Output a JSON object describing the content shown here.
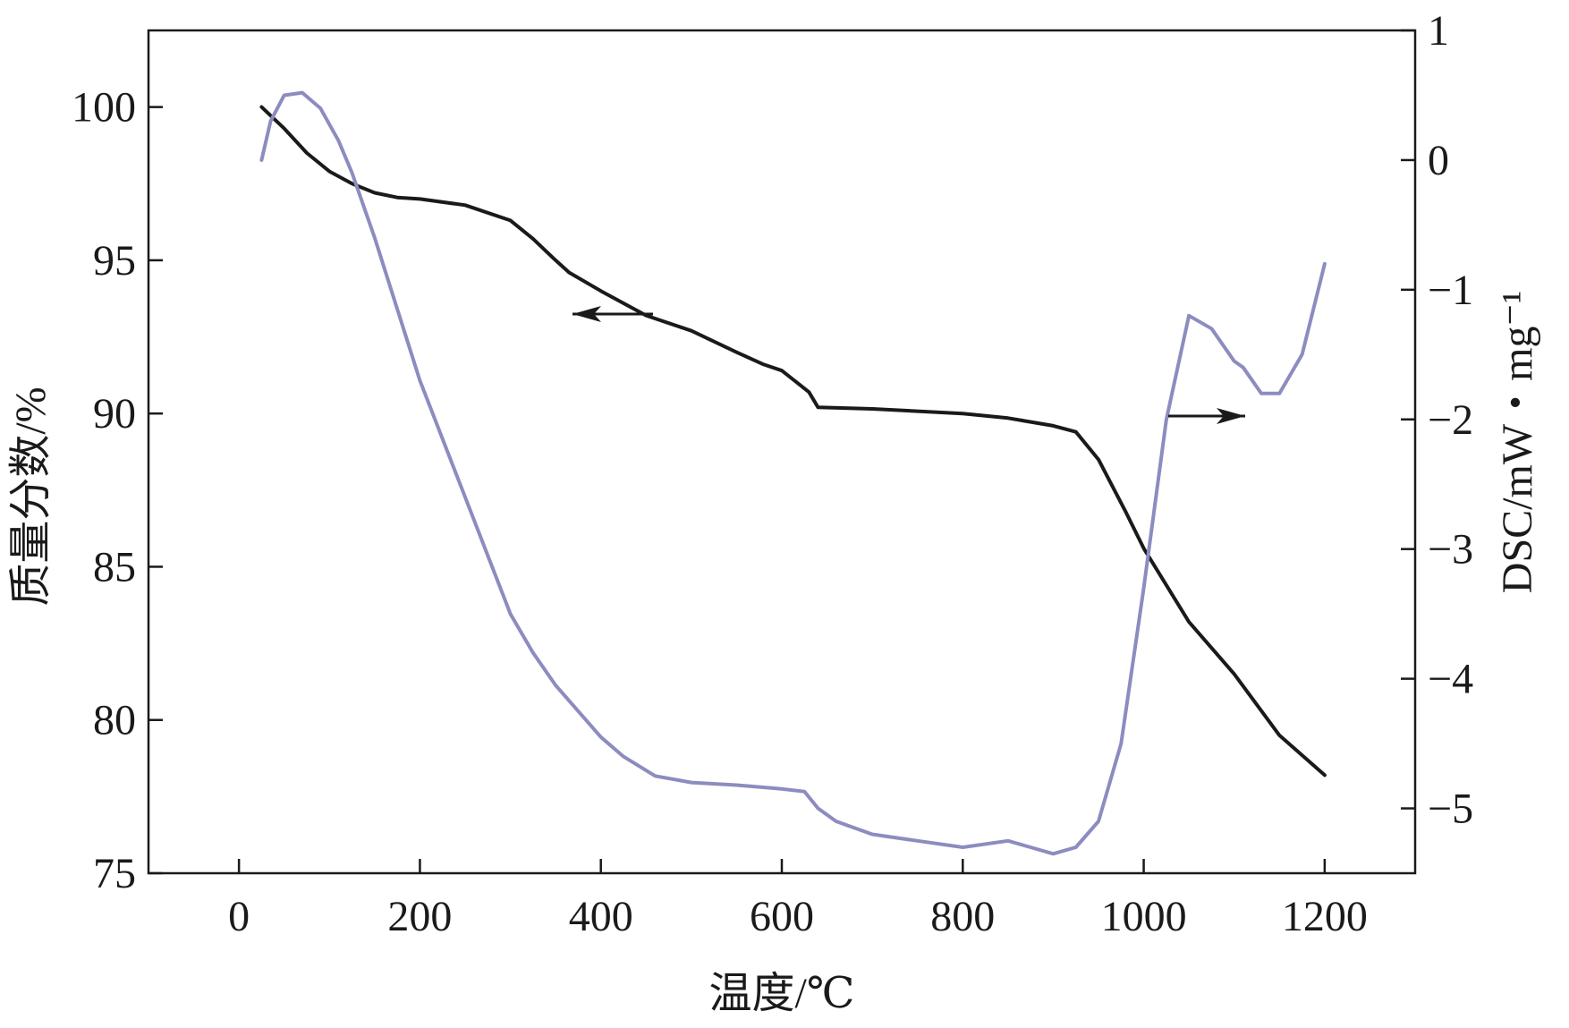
{
  "chart_data": {
    "type": "line",
    "xlabel": "温度/℃",
    "ylabel_left": "质量分数/%",
    "ylabel_right": "DSC/mW・mg⁻¹",
    "xlim": [
      -100,
      1300
    ],
    "ylim_left": [
      75,
      102.5
    ],
    "ylim_right": [
      -5.5,
      1
    ],
    "x_ticks": [
      "0",
      "200",
      "400",
      "600",
      "800",
      "1000",
      "1200"
    ],
    "left_ticks": [
      "75",
      "80",
      "85",
      "90",
      "95",
      "100"
    ],
    "right_ticks": [
      "1",
      "0",
      "−1",
      "−2",
      "−3",
      "−4",
      "−5"
    ],
    "grid": false,
    "legend": "none",
    "series": [
      {
        "axis": "left",
        "color": "#1a1a1a",
        "x": [
          25,
          50,
          75,
          100,
          125,
          150,
          175,
          200,
          250,
          300,
          325,
          350,
          365,
          400,
          450,
          500,
          550,
          580,
          600,
          630,
          640,
          700,
          800,
          850,
          900,
          925,
          950,
          980,
          1000,
          1050,
          1100,
          1150,
          1200
        ],
        "y": [
          100,
          99.3,
          98.5,
          97.9,
          97.5,
          97.2,
          97.05,
          97.0,
          96.8,
          96.3,
          95.7,
          95.0,
          94.6,
          94.0,
          93.2,
          92.7,
          92.0,
          91.6,
          91.4,
          90.7,
          90.2,
          90.15,
          90.0,
          89.85,
          89.6,
          89.4,
          88.5,
          86.8,
          85.6,
          83.2,
          81.5,
          79.5,
          78.2
        ]
      },
      {
        "axis": "right",
        "color": "#8c8cc0",
        "x": [
          25,
          35,
          50,
          70,
          90,
          110,
          125,
          150,
          200,
          250,
          300,
          325,
          350,
          400,
          425,
          460,
          500,
          550,
          600,
          625,
          640,
          660,
          700,
          750,
          800,
          850,
          875,
          900,
          925,
          950,
          975,
          1000,
          1025,
          1050,
          1075,
          1100,
          1110,
          1130,
          1150,
          1175,
          1200
        ],
        "y": [
          0,
          0.3,
          0.5,
          0.52,
          0.4,
          0.15,
          -0.1,
          -0.6,
          -1.7,
          -2.6,
          -3.5,
          -3.8,
          -4.05,
          -4.45,
          -4.6,
          -4.75,
          -4.8,
          -4.82,
          -4.85,
          -4.87,
          -5.0,
          -5.1,
          -5.2,
          -5.25,
          -5.3,
          -5.25,
          -5.3,
          -5.35,
          -5.3,
          -5.1,
          -4.5,
          -3.3,
          -2.0,
          -1.2,
          -1.3,
          -1.55,
          -1.6,
          -1.8,
          -1.8,
          -1.5,
          -0.8
        ]
      }
    ],
    "annotations": [
      {
        "type": "arrow",
        "direction": "left",
        "target_axis": "left"
      },
      {
        "type": "arrow",
        "direction": "right",
        "target_axis": "right"
      }
    ]
  }
}
